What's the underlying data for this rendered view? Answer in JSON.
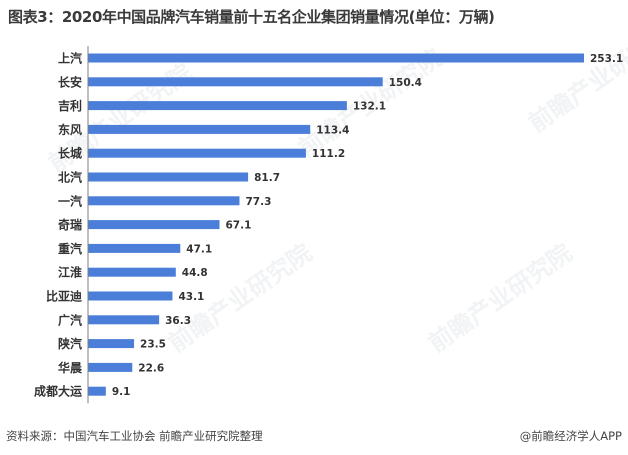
{
  "watermark_text": "前瞻产业研究院",
  "footer": {
    "source": "资料来源：中国汽车工业协会 前瞻产业研究院整理",
    "brand": "@前瞻经济学人APP"
  },
  "colors": {
    "bar": "#4a7ed8",
    "axis": "#7f7f7f",
    "label": "#333333"
  },
  "chart_data": {
    "type": "bar",
    "orientation": "horizontal",
    "title": "图表3：2020年中国品牌汽车销量前十五名企业集团销量情况(单位：万辆)",
    "unit": "万辆",
    "categories": [
      "上汽",
      "长安",
      "吉利",
      "东风",
      "长城",
      "北汽",
      "一汽",
      "奇瑞",
      "重汽",
      "江淮",
      "比亚迪",
      "广汽",
      "陕汽",
      "华晨",
      "成都大运"
    ],
    "values": [
      253.1,
      150.4,
      132.1,
      113.4,
      111.2,
      81.7,
      77.3,
      67.1,
      47.1,
      44.8,
      43.1,
      36.3,
      23.5,
      22.6,
      9.1
    ],
    "value_labels": [
      "253.1",
      "150.4",
      "132.1",
      "113.4",
      "111.2",
      "81.7",
      "77.3",
      "67.1",
      "47.1",
      "44.8",
      "43.1",
      "36.3",
      "23.5",
      "22.6",
      "9.1"
    ],
    "xlim": [
      0,
      253.1
    ],
    "grid": false,
    "legend": "none"
  }
}
